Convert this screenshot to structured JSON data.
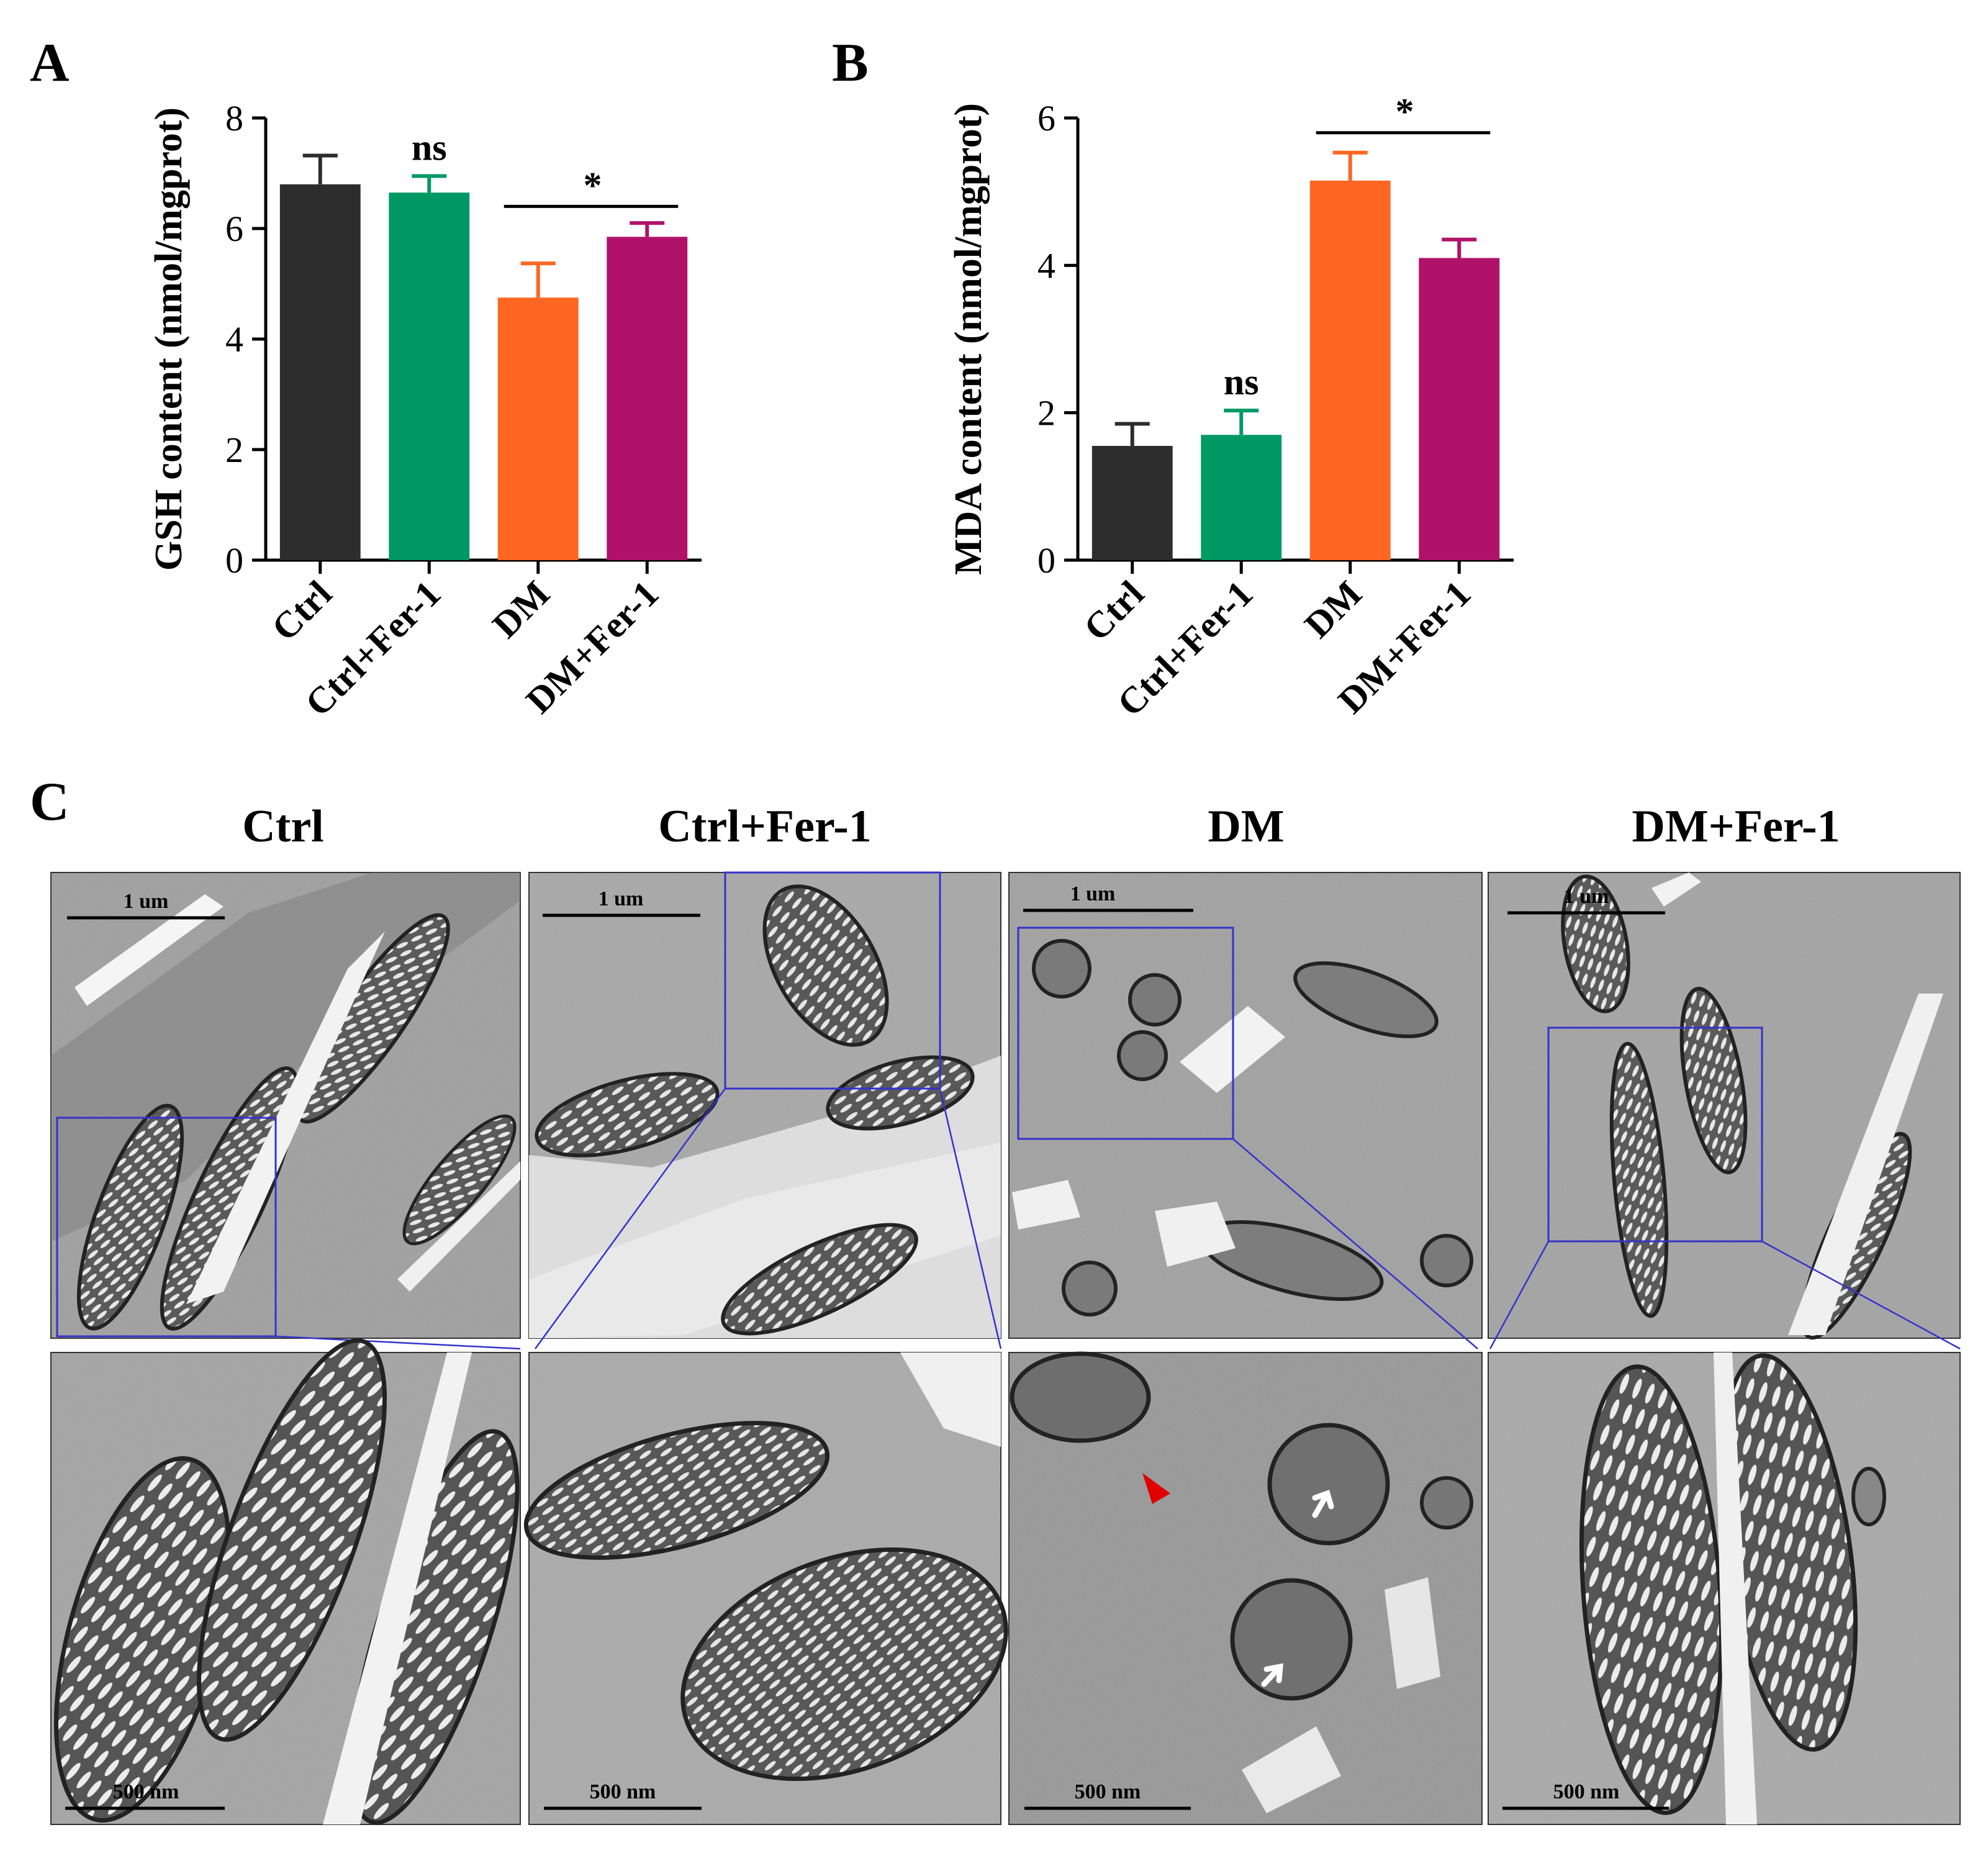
{
  "figure": {
    "panel_labels": [
      "A",
      "B",
      "C"
    ]
  },
  "chart_data": [
    {
      "type": "bar",
      "panel": "A",
      "title": "",
      "xlabel": "",
      "ylabel": "GSH content (nmol/mgprot)",
      "categories": [
        "Ctrl",
        "Ctrl+Fer-1",
        "DM",
        "DM+Fer-1"
      ],
      "values": [
        6.8,
        6.65,
        4.75,
        5.85
      ],
      "errors": [
        0.52,
        0.3,
        0.62,
        0.25
      ],
      "ylim": [
        0,
        8
      ],
      "yticks": [
        0,
        2,
        4,
        6,
        8
      ],
      "bar_colors": [
        "#2d2d2d",
        "#009966",
        "#ff6622",
        "#b0126a"
      ],
      "annotations": [
        {
          "text": "ns",
          "over": "Ctrl+Fer-1"
        },
        {
          "text": "*",
          "between": [
            "DM",
            "DM+Fer-1"
          ],
          "line_y": 6.4
        }
      ],
      "grid": false,
      "legend": "none"
    },
    {
      "type": "bar",
      "panel": "B",
      "title": "",
      "xlabel": "",
      "ylabel": "MDA content (nmol/mgprot)",
      "categories": [
        "Ctrl",
        "Ctrl+Fer-1",
        "DM",
        "DM+Fer-1"
      ],
      "values": [
        1.55,
        1.7,
        5.15,
        4.1
      ],
      "errors": [
        0.3,
        0.33,
        0.38,
        0.25
      ],
      "ylim": [
        0,
        6
      ],
      "yticks": [
        0,
        2,
        4,
        6
      ],
      "bar_colors": [
        "#2d2d2d",
        "#009966",
        "#ff6622",
        "#b0126a"
      ],
      "annotations": [
        {
          "text": "ns",
          "over": "Ctrl+Fer-1"
        },
        {
          "text": "*",
          "between": [
            "DM",
            "DM+Fer-1"
          ],
          "line_y": 5.8
        }
      ],
      "grid": false,
      "legend": "none"
    }
  ],
  "panel_c": {
    "columns": [
      "Ctrl",
      "Ctrl+Fer-1",
      "DM",
      "DM+Fer-1"
    ],
    "top_scale_label": "1 um",
    "bottom_scale_label": "500 nm",
    "box_color": "#3333cc",
    "arrow_colors": {
      "red": "#e00000",
      "white": "#ffffff"
    }
  }
}
